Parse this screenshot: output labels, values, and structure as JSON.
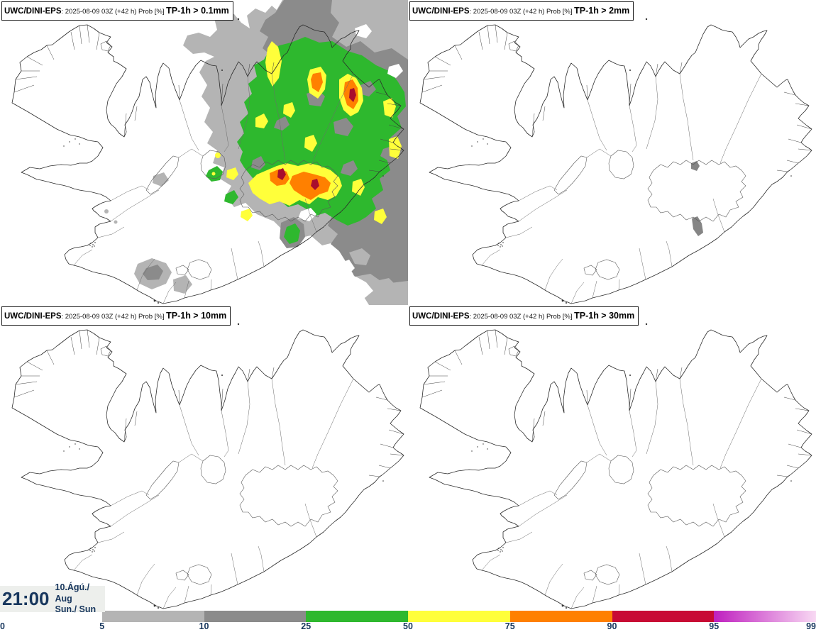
{
  "panels": [
    {
      "model": "UWC/DINI-EPS",
      "meta": ": 2025-08-09 03Z (+42 h) Prob [%] ",
      "threshold": "TP-1h > 0.1mm"
    },
    {
      "model": "UWC/DINI-EPS",
      "meta": ": 2025-08-09 03Z (+42 h) Prob [%] ",
      "threshold": "TP-1h > 2mm"
    },
    {
      "model": "UWC/DINI-EPS",
      "meta": ": 2025-08-09 03Z (+42 h) Prob [%] ",
      "threshold": "TP-1h > 10mm"
    },
    {
      "model": "UWC/DINI-EPS",
      "meta": ": 2025-08-09 03Z (+42 h) Prob [%] ",
      "threshold": "TP-1h > 30mm"
    }
  ],
  "footer": {
    "time": "21:00",
    "date_line1": "10.Ágú./ Aug",
    "date_line2": "Sun./ Sun"
  },
  "colorbar": {
    "tick_labels": [
      "0",
      "5",
      "10",
      "25",
      "50",
      "75",
      "90",
      "95",
      "99"
    ],
    "segments": [
      {
        "range": "0-5",
        "color": "#ffffff"
      },
      {
        "range": "5-10",
        "color": "#b4b4b4"
      },
      {
        "range": "10-25",
        "color": "#8b8b8b"
      },
      {
        "range": "25-50",
        "color": "#2eb82e"
      },
      {
        "range": "50-75",
        "color": "#ffff3a"
      },
      {
        "range": "75-90",
        "color": "#ff8000"
      },
      {
        "range": "90-95",
        "color": "#c80a35"
      },
      {
        "range": "95-99",
        "color_start": "#bf1fbf",
        "color_end": "#f8d9f3"
      }
    ]
  },
  "colors": {
    "accent_text": "#17365d",
    "prob_light_gray": "#b4b4b4",
    "prob_gray": "#8b8b8b",
    "prob_green": "#2eb82e",
    "prob_yellow": "#ffff3a",
    "prob_orange": "#ff8000",
    "prob_crimson": "#a80d2d"
  }
}
